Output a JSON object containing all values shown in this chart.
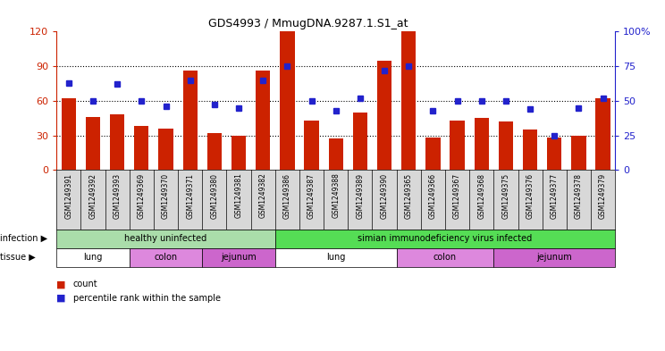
{
  "title": "GDS4993 / MmugDNA.9287.1.S1_at",
  "samples": [
    "GSM1249391",
    "GSM1249392",
    "GSM1249393",
    "GSM1249369",
    "GSM1249370",
    "GSM1249371",
    "GSM1249380",
    "GSM1249381",
    "GSM1249382",
    "GSM1249386",
    "GSM1249387",
    "GSM1249388",
    "GSM1249389",
    "GSM1249390",
    "GSM1249365",
    "GSM1249366",
    "GSM1249367",
    "GSM1249368",
    "GSM1249375",
    "GSM1249376",
    "GSM1249377",
    "GSM1249378",
    "GSM1249379"
  ],
  "counts": [
    62,
    46,
    48,
    38,
    36,
    86,
    32,
    30,
    86,
    120,
    43,
    27,
    50,
    95,
    120,
    28,
    43,
    45,
    42,
    35,
    28,
    30,
    62
  ],
  "percentiles": [
    63,
    50,
    62,
    50,
    46,
    65,
    47,
    45,
    65,
    75,
    50,
    43,
    52,
    72,
    75,
    43,
    50,
    50,
    50,
    44,
    25,
    45,
    52
  ],
  "left_ylim": [
    0,
    120
  ],
  "right_ylim": [
    0,
    100
  ],
  "left_yticks": [
    0,
    30,
    60,
    90,
    120
  ],
  "right_yticks": [
    0,
    25,
    50,
    75,
    100
  ],
  "left_yticklabels": [
    "0",
    "30",
    "60",
    "90",
    "120"
  ],
  "right_yticklabels": [
    "0",
    "25",
    "50",
    "75",
    "100%"
  ],
  "bar_color": "#cc2200",
  "dot_color": "#2222cc",
  "infection_groups": [
    {
      "label": "healthy uninfected",
      "start": 0,
      "end": 9,
      "color": "#aaddaa"
    },
    {
      "label": "simian immunodeficiency virus infected",
      "start": 9,
      "end": 23,
      "color": "#55dd55"
    }
  ],
  "tissue_groups": [
    {
      "label": "lung",
      "start": 0,
      "end": 3,
      "color": "#ffffff"
    },
    {
      "label": "colon",
      "start": 3,
      "end": 6,
      "color": "#dd88dd"
    },
    {
      "label": "jejunum",
      "start": 6,
      "end": 9,
      "color": "#dd66dd"
    },
    {
      "label": "lung",
      "start": 9,
      "end": 14,
      "color": "#ffffff"
    },
    {
      "label": "colon",
      "start": 14,
      "end": 18,
      "color": "#dd88dd"
    },
    {
      "label": "jejunum",
      "start": 18,
      "end": 23,
      "color": "#dd66dd"
    }
  ],
  "gridline_color": "#000000",
  "left_axis_color": "#cc2200",
  "right_axis_color": "#2222cc",
  "xtick_bg_color": "#d8d8d8",
  "infection_label_color": "#444444",
  "tissue_label_color": "#444444"
}
